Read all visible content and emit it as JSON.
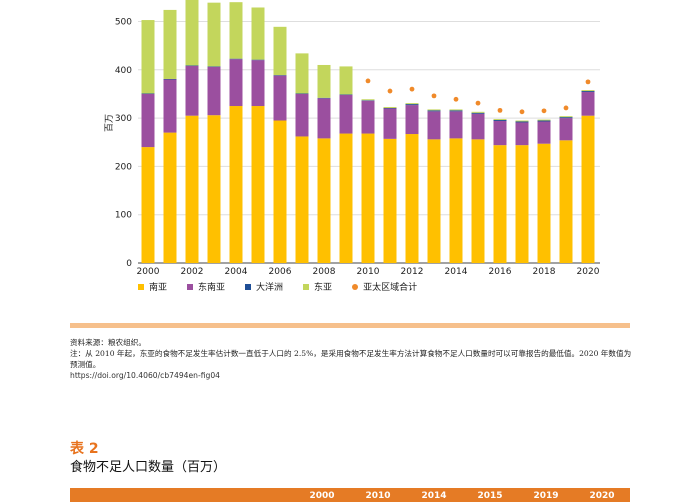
{
  "chart_data": {
    "type": "bar",
    "stacked": true,
    "ylabel": "百万",
    "ylim": [
      0,
      550
    ],
    "yticks": [
      0,
      100,
      200,
      300,
      400,
      500
    ],
    "grid": true,
    "legend_position": "bottom",
    "categories": [
      "2000",
      "2001",
      "2002",
      "2003",
      "2004",
      "2005",
      "2006",
      "2007",
      "2008",
      "2009",
      "2010",
      "2011",
      "2012",
      "2013",
      "2014",
      "2015",
      "2016",
      "2017",
      "2018",
      "2019",
      "2020"
    ],
    "xtick_labels": [
      "2000",
      "2002",
      "2004",
      "2006",
      "2008",
      "2010",
      "2012",
      "2014",
      "2016",
      "2018",
      "2020"
    ],
    "series": [
      {
        "name": "南亚",
        "color": "#ffc000",
        "values": [
          240,
          270,
          305,
          306,
          325,
          325,
          295,
          262,
          258,
          268,
          268,
          257,
          267,
          256,
          258,
          256,
          244,
          244,
          247,
          254,
          305
        ]
      },
      {
        "name": "东南亚",
        "color": "#9b4f9f",
        "values": [
          110,
          110,
          103,
          100,
          97,
          95,
          93,
          88,
          83,
          80,
          68,
          63,
          60,
          58,
          56,
          53,
          50,
          47,
          46,
          46,
          49
        ]
      },
      {
        "name": "大洋洲",
        "color": "#1f4e96",
        "values": [
          1,
          1,
          1,
          1,
          1,
          1,
          1,
          1,
          1,
          1,
          1,
          1,
          2,
          2,
          2,
          2,
          2,
          2,
          2,
          2,
          2
        ]
      },
      {
        "name": "东亚",
        "color": "#c3d65c",
        "values": [
          152,
          143,
          138,
          132,
          117,
          108,
          100,
          83,
          68,
          58,
          2,
          2,
          2,
          2,
          2,
          2,
          2,
          2,
          2,
          2,
          2
        ]
      }
    ],
    "totals_series": {
      "name": "亚太区域合计",
      "color": "#f08a2a",
      "values": [
        null,
        null,
        null,
        null,
        null,
        null,
        null,
        null,
        null,
        null,
        377,
        356,
        360,
        346,
        339,
        331,
        316,
        313,
        315,
        321,
        375
      ]
    }
  },
  "notes": {
    "source": "资料来源：粮农组织。",
    "note": "注：从 2010 年起，东亚的食物不足发生率估计数一直低于人口的 2.5%，是采用食物不足发生率方法计算食物不足人口数量时可以可靠报告的最低值。2020 年数值为预测值。",
    "doi": "https://doi.org/10.4060/cb7494en-fig04"
  },
  "table": {
    "label": "表 2",
    "title": "食物不足人口数量（百万）",
    "headers": [
      "2000",
      "2010",
      "2014",
      "2015",
      "2019",
      "2020"
    ]
  }
}
